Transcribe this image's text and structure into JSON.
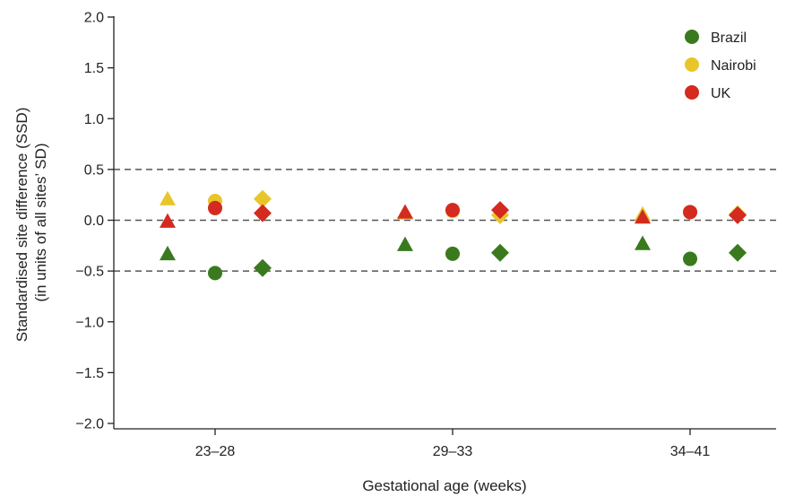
{
  "chart_data": {
    "type": "scatter",
    "xlabel": "Gestational age (weeks)",
    "ylabel_lines": [
      "Standardised site difference (SSD)",
      "(in units of all sites’ SD)"
    ],
    "categories": [
      "23–28",
      "29–33",
      "34–41"
    ],
    "ylim": [
      -2.0,
      2.0
    ],
    "yticks": [
      "2.0",
      "1.5",
      "1.0",
      "0.5",
      "0.0",
      "−0.5",
      "−1.0",
      "−1.5",
      "−2.0"
    ],
    "reference_lines": [
      0.5,
      0.0,
      -0.5
    ],
    "marker_shapes": [
      "triangle",
      "circle",
      "diamond"
    ],
    "legend_position": "top-right",
    "series": [
      {
        "name": "Brazil",
        "color": "#3a7a1e",
        "values": [
          [
            -0.33,
            -0.52,
            -0.47
          ],
          [
            -0.24,
            -0.33,
            -0.32
          ],
          [
            -0.23,
            -0.38,
            -0.32
          ]
        ]
      },
      {
        "name": "Nairobi",
        "color": "#e8c62a",
        "values": [
          [
            0.21,
            0.19,
            0.21
          ],
          [
            0.07,
            0.09,
            0.05
          ],
          [
            0.06,
            0.08,
            0.06
          ]
        ]
      },
      {
        "name": "UK",
        "color": "#d42a1f",
        "values": [
          [
            -0.01,
            0.12,
            0.07
          ],
          [
            0.08,
            0.1,
            0.1
          ],
          [
            0.03,
            0.08,
            0.05
          ]
        ]
      }
    ]
  }
}
